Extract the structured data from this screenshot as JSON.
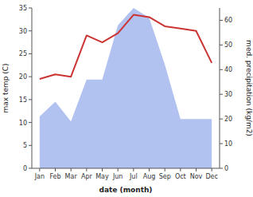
{
  "chart_data": {
    "type": "line",
    "categories": [
      "Jan",
      "Feb",
      "Mar",
      "Apr",
      "May",
      "Jun",
      "Jul",
      "Aug",
      "Sep",
      "Oct",
      "Nov",
      "Dec"
    ],
    "series": [
      {
        "type": "area",
        "axis": "y2",
        "color": "#aabbee",
        "values": [
          21,
          27,
          19,
          36,
          36,
          58,
          65,
          61,
          42,
          20,
          20,
          20
        ]
      },
      {
        "type": "line",
        "color": "#cc3333",
        "values": [
          19.5,
          20.5,
          20.0,
          29.0,
          27.5,
          29.5,
          33.5,
          33.0,
          31.0,
          30.5,
          30.0,
          23.0
        ]
      }
    ],
    "xlabel": "date (month)",
    "ylabel": "max temp (C)",
    "y2label": "med. precipitation (kg/m2)",
    "ylim": [
      0,
      35
    ],
    "yticks": [
      0,
      5,
      10,
      15,
      20,
      25,
      30,
      35
    ],
    "y2lim": [
      0,
      65
    ],
    "y2ticks": [
      0,
      10,
      20,
      30,
      40,
      50,
      60
    ],
    "grid": false
  }
}
